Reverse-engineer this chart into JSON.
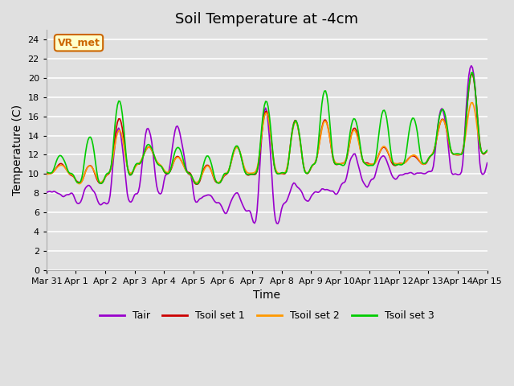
{
  "title": "Soil Temperature at -4cm",
  "xlabel": "Time",
  "ylabel": "Temperature (C)",
  "ylim": [
    0,
    25
  ],
  "yticks": [
    0,
    2,
    4,
    6,
    8,
    10,
    12,
    14,
    16,
    18,
    20,
    22,
    24
  ],
  "xlim": [
    0,
    360
  ],
  "xtick_positions": [
    0,
    24,
    48,
    72,
    96,
    120,
    144,
    168,
    192,
    216,
    240,
    264,
    288,
    312,
    336,
    360
  ],
  "xtick_labels": [
    "Mar 31",
    "Apr 1",
    "Apr 2",
    "Apr 3",
    "Apr 4",
    "Apr 5",
    "Apr 6",
    "Apr 7",
    "Apr 8",
    "Apr 9",
    "Apr 10",
    "Apr 11",
    "Apr 12",
    "Apr 13",
    "Apr 14",
    "Apr 15"
  ],
  "colors": {
    "Tair": "#9900cc",
    "Tsoil1": "#cc0000",
    "Tsoil2": "#ff9900",
    "Tsoil3": "#00cc00"
  },
  "line_width": 1.2,
  "bg_color": "#e0e0e0",
  "grid_color": "white",
  "annotation_text": "VR_met",
  "annotation_bg": "#ffffcc",
  "annotation_border": "#cc6600",
  "legend_items": [
    "Tair",
    "Tsoil set 1",
    "Tsoil set 2",
    "Tsoil set 3"
  ],
  "title_fontsize": 13,
  "axis_fontsize": 10,
  "tick_fontsize": 8
}
